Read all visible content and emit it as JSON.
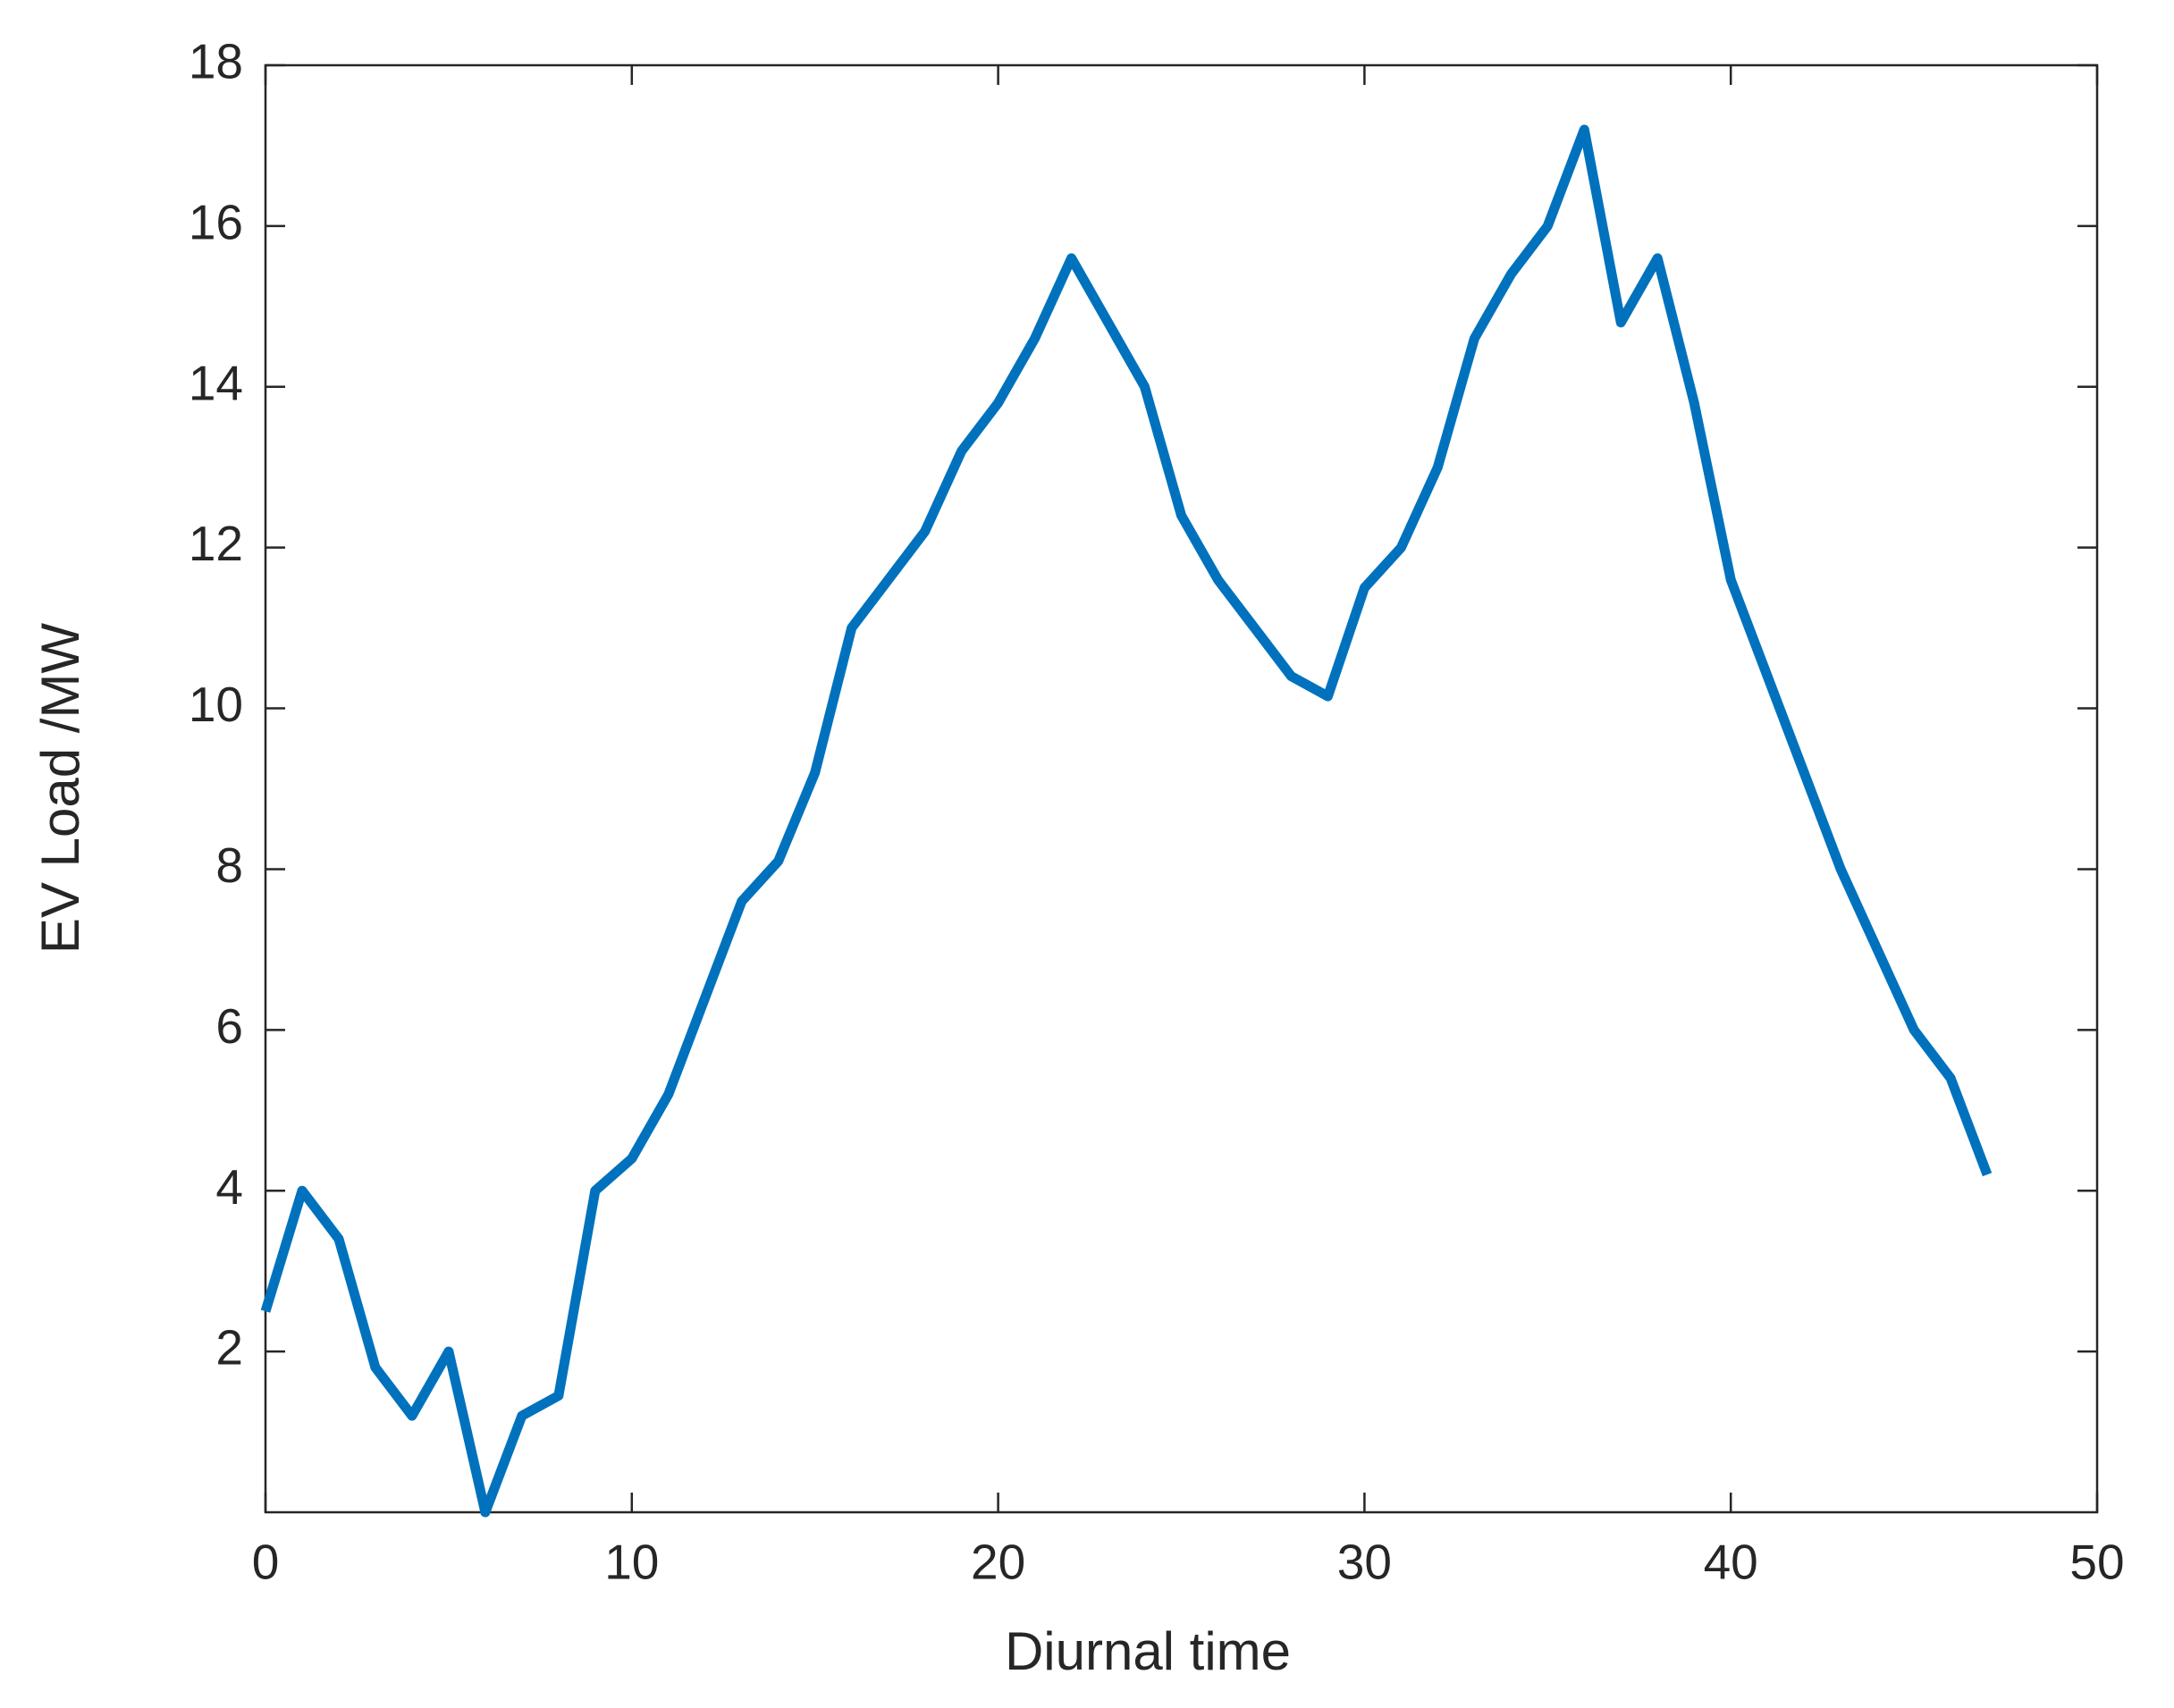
{
  "chart_data": {
    "type": "line",
    "xlabel": "Diurnal time",
    "ylabel": "EV Load /MW",
    "x": [
      0,
      1,
      2,
      3,
      4,
      5,
      6,
      7,
      8,
      9,
      10,
      11,
      12,
      13,
      14,
      15,
      16,
      17,
      18,
      19,
      20,
      21,
      22,
      23,
      24,
      25,
      26,
      27,
      28,
      29,
      30,
      31,
      32,
      33,
      34,
      35,
      36,
      37,
      38,
      39,
      40,
      41,
      42,
      43,
      44,
      45,
      46,
      47
    ],
    "series": [
      {
        "color": "#0072bd",
        "values": [
          2.5,
          4.0,
          3.4,
          1.8,
          1.2,
          2.0,
          0.0,
          1.2,
          1.45,
          4.0,
          4.4,
          5.2,
          6.4,
          7.6,
          8.1,
          9.2,
          11.0,
          11.6,
          12.2,
          13.2,
          13.8,
          14.6,
          15.6,
          14.8,
          14.0,
          12.4,
          11.6,
          11.0,
          10.4,
          10.15,
          11.5,
          12.0,
          13.0,
          14.6,
          15.4,
          16.0,
          17.2,
          14.8,
          15.6,
          13.8,
          11.6,
          10.4,
          9.2,
          8.0,
          7.0,
          6.0,
          5.4,
          4.2
        ]
      }
    ],
    "xlim": [
      0,
      50
    ],
    "xticks": [
      0,
      10,
      20,
      30,
      40,
      50
    ],
    "ylim": [
      0,
      18
    ],
    "yticks": [
      2,
      4,
      6,
      8,
      10,
      12,
      14,
      16,
      18
    ]
  }
}
